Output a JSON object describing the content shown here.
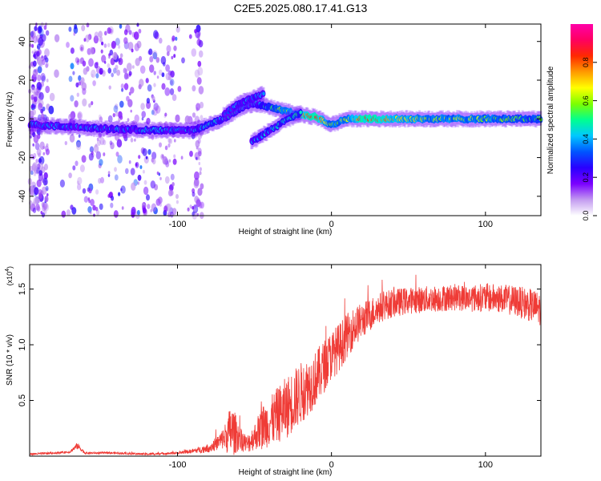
{
  "title": "C2E5.2025.080.17.41.G13",
  "chart_data": [
    {
      "type": "heatmap",
      "name": "spectrogram",
      "xlabel": "Height of straight line (km)",
      "ylabel": "Frequency (Hz)",
      "xlim": [
        -196,
        136
      ],
      "ylim": [
        -50,
        49
      ],
      "xticks": [
        -100,
        0,
        100
      ],
      "xtick_labels": [
        "-100",
        "0",
        "100"
      ],
      "yticks": [
        -40,
        -20,
        0,
        20,
        40
      ],
      "ytick_labels": [
        "-40",
        "-20",
        "0",
        "20",
        "40"
      ],
      "colorbar": {
        "label": "Normalized spectral amplitude",
        "range": [
          0,
          1
        ],
        "ticks": [
          0,
          0.2,
          0.4,
          0.6,
          0.8
        ],
        "tick_labels": [
          "0.0",
          "0.2",
          "0.4",
          "0.6",
          "0.8"
        ],
        "colors": [
          "#ffffff",
          "#c39bf0",
          "#7a00ff",
          "#2a00ff",
          "#0055ff",
          "#00c8ff",
          "#00ff90",
          "#7cff00",
          "#ffff00",
          "#ff9a00",
          "#ff2a00",
          "#ff0060",
          "#ff00a8"
        ]
      },
      "ridges": [
        {
          "name": "main-ridge",
          "points": [
            [
              -196,
              -3
            ],
            [
              -150,
              -5
            ],
            [
              -110,
              -6
            ],
            [
              -90,
              -6
            ],
            [
              -80,
              -3
            ],
            [
              -70,
              0
            ],
            [
              -60,
              5
            ],
            [
              -50,
              8
            ],
            [
              -40,
              6
            ],
            [
              -20,
              2
            ],
            [
              -10,
              1
            ],
            [
              0,
              -3
            ],
            [
              10,
              0
            ],
            [
              20,
              0
            ],
            [
              60,
              0
            ],
            [
              100,
              0
            ],
            [
              136,
              0
            ]
          ],
          "amplitude": [
            0.35,
            0.38,
            0.4,
            0.38,
            0.42,
            0.45,
            0.42,
            0.4,
            0.5,
            0.8,
            0.85,
            0.6,
            0.65,
            0.85,
            0.65,
            0.62,
            0.55
          ]
        },
        {
          "name": "upper-branch",
          "points": [
            [
              -70,
              2
            ],
            [
              -60,
              8
            ],
            [
              -50,
              11
            ],
            [
              -44,
              13
            ]
          ],
          "amplitude": [
            0.35,
            0.4,
            0.4,
            0.38
          ]
        },
        {
          "name": "rising-branch",
          "points": [
            [
              -52,
              -12
            ],
            [
              -40,
              -6
            ],
            [
              -30,
              -1
            ],
            [
              -20,
              3
            ]
          ],
          "amplitude": [
            0.38,
            0.42,
            0.45,
            0.5
          ]
        }
      ]
    },
    {
      "type": "line",
      "name": "snr",
      "xlabel": "Height of straight line (km)",
      "ylabel": "SNR (10 * v/v)",
      "y_scale_label": "(x10",
      "y_scale_exponent": "4",
      "xlim": [
        -196,
        136
      ],
      "ylim": [
        0,
        1.72
      ],
      "xticks": [
        -100,
        0,
        100
      ],
      "xtick_labels": [
        "-100",
        "0",
        "100"
      ],
      "yticks": [
        0.5,
        1.0,
        1.5
      ],
      "ytick_labels": [
        "0.5",
        "1.0",
        "1.5"
      ],
      "series": [
        {
          "name": "SNR",
          "color": "#ef3b36",
          "x": [
            -196,
            -180,
            -170,
            -165,
            -160,
            -140,
            -120,
            -100,
            -90,
            -80,
            -75,
            -70,
            -65,
            -60,
            -55,
            -50,
            -45,
            -40,
            -35,
            -30,
            -25,
            -20,
            -15,
            -10,
            -5,
            0,
            5,
            10,
            15,
            20,
            25,
            30,
            35,
            40,
            50,
            60,
            70,
            80,
            90,
            100,
            110,
            120,
            130,
            136
          ],
          "values": [
            0.02,
            0.03,
            0.04,
            0.1,
            0.03,
            0.03,
            0.02,
            0.03,
            0.05,
            0.08,
            0.12,
            0.18,
            0.28,
            0.2,
            0.12,
            0.2,
            0.3,
            0.35,
            0.42,
            0.48,
            0.55,
            0.62,
            0.68,
            0.75,
            0.85,
            0.95,
            1.02,
            1.12,
            1.2,
            1.25,
            1.3,
            1.35,
            1.38,
            1.4,
            1.42,
            1.43,
            1.44,
            1.45,
            1.44,
            1.45,
            1.44,
            1.42,
            1.38,
            1.35
          ],
          "noise": [
            0.01,
            0.01,
            0.01,
            0.03,
            0.01,
            0.01,
            0.01,
            0.01,
            0.02,
            0.04,
            0.06,
            0.1,
            0.25,
            0.12,
            0.08,
            0.12,
            0.2,
            0.22,
            0.25,
            0.28,
            0.28,
            0.28,
            0.26,
            0.25,
            0.24,
            0.22,
            0.22,
            0.2,
            0.18,
            0.16,
            0.15,
            0.14,
            0.13,
            0.13,
            0.12,
            0.12,
            0.12,
            0.12,
            0.12,
            0.13,
            0.13,
            0.14,
            0.15,
            0.15
          ]
        }
      ]
    }
  ]
}
